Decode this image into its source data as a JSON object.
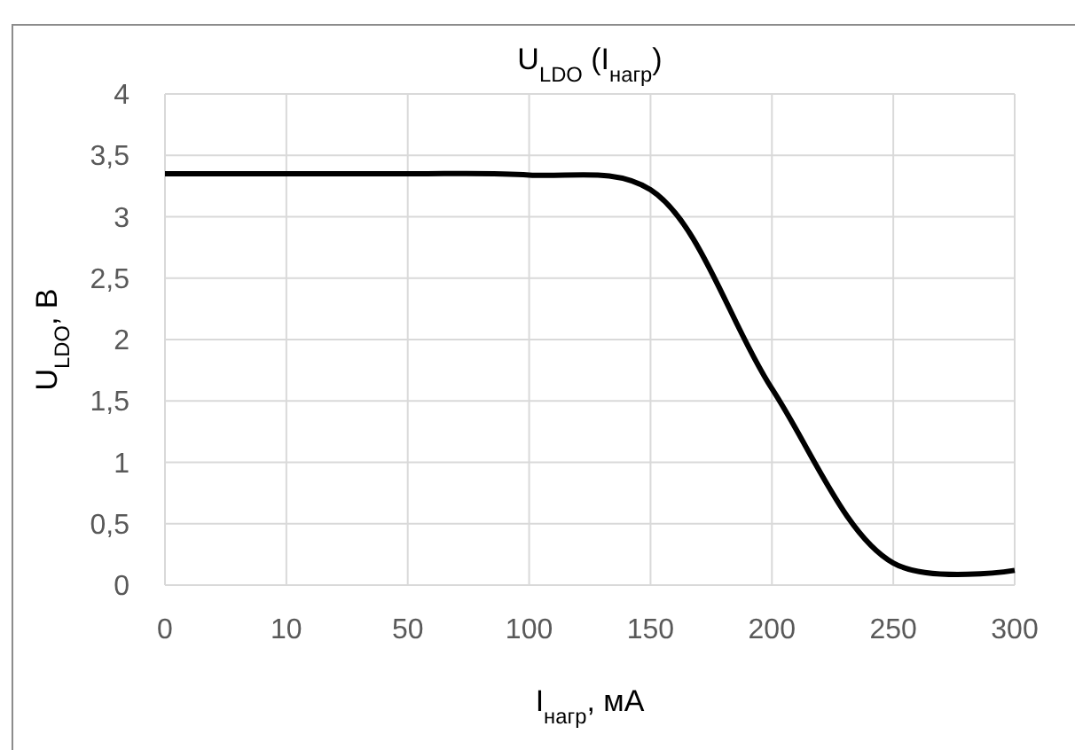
{
  "chart_data": {
    "type": "line",
    "title": "U$_{LDO}$ (I$_{нагр}$)",
    "xlabel": "I$_{нагр}$, мА",
    "ylabel": "U$_{LDO}$, В",
    "categories": [
      "0",
      "10",
      "50",
      "100",
      "150",
      "200",
      "250",
      "300"
    ],
    "series": [
      {
        "color": "#000000",
        "values": [
          3.35,
          3.35,
          3.35,
          3.34,
          3.22,
          1.6,
          0.18,
          0.12
        ]
      }
    ],
    "ylim": [
      0,
      4
    ],
    "yticks": [
      0,
      {
        "value": 0.5,
        "label": "0,5"
      },
      1,
      {
        "value": 1.5,
        "label": "1,5"
      },
      2,
      {
        "value": 2.5,
        "label": "2,5"
      },
      3,
      {
        "value": 3.5,
        "label": "3,5"
      },
      4
    ],
    "grid": true,
    "marker": "none",
    "line_style": "solid"
  }
}
